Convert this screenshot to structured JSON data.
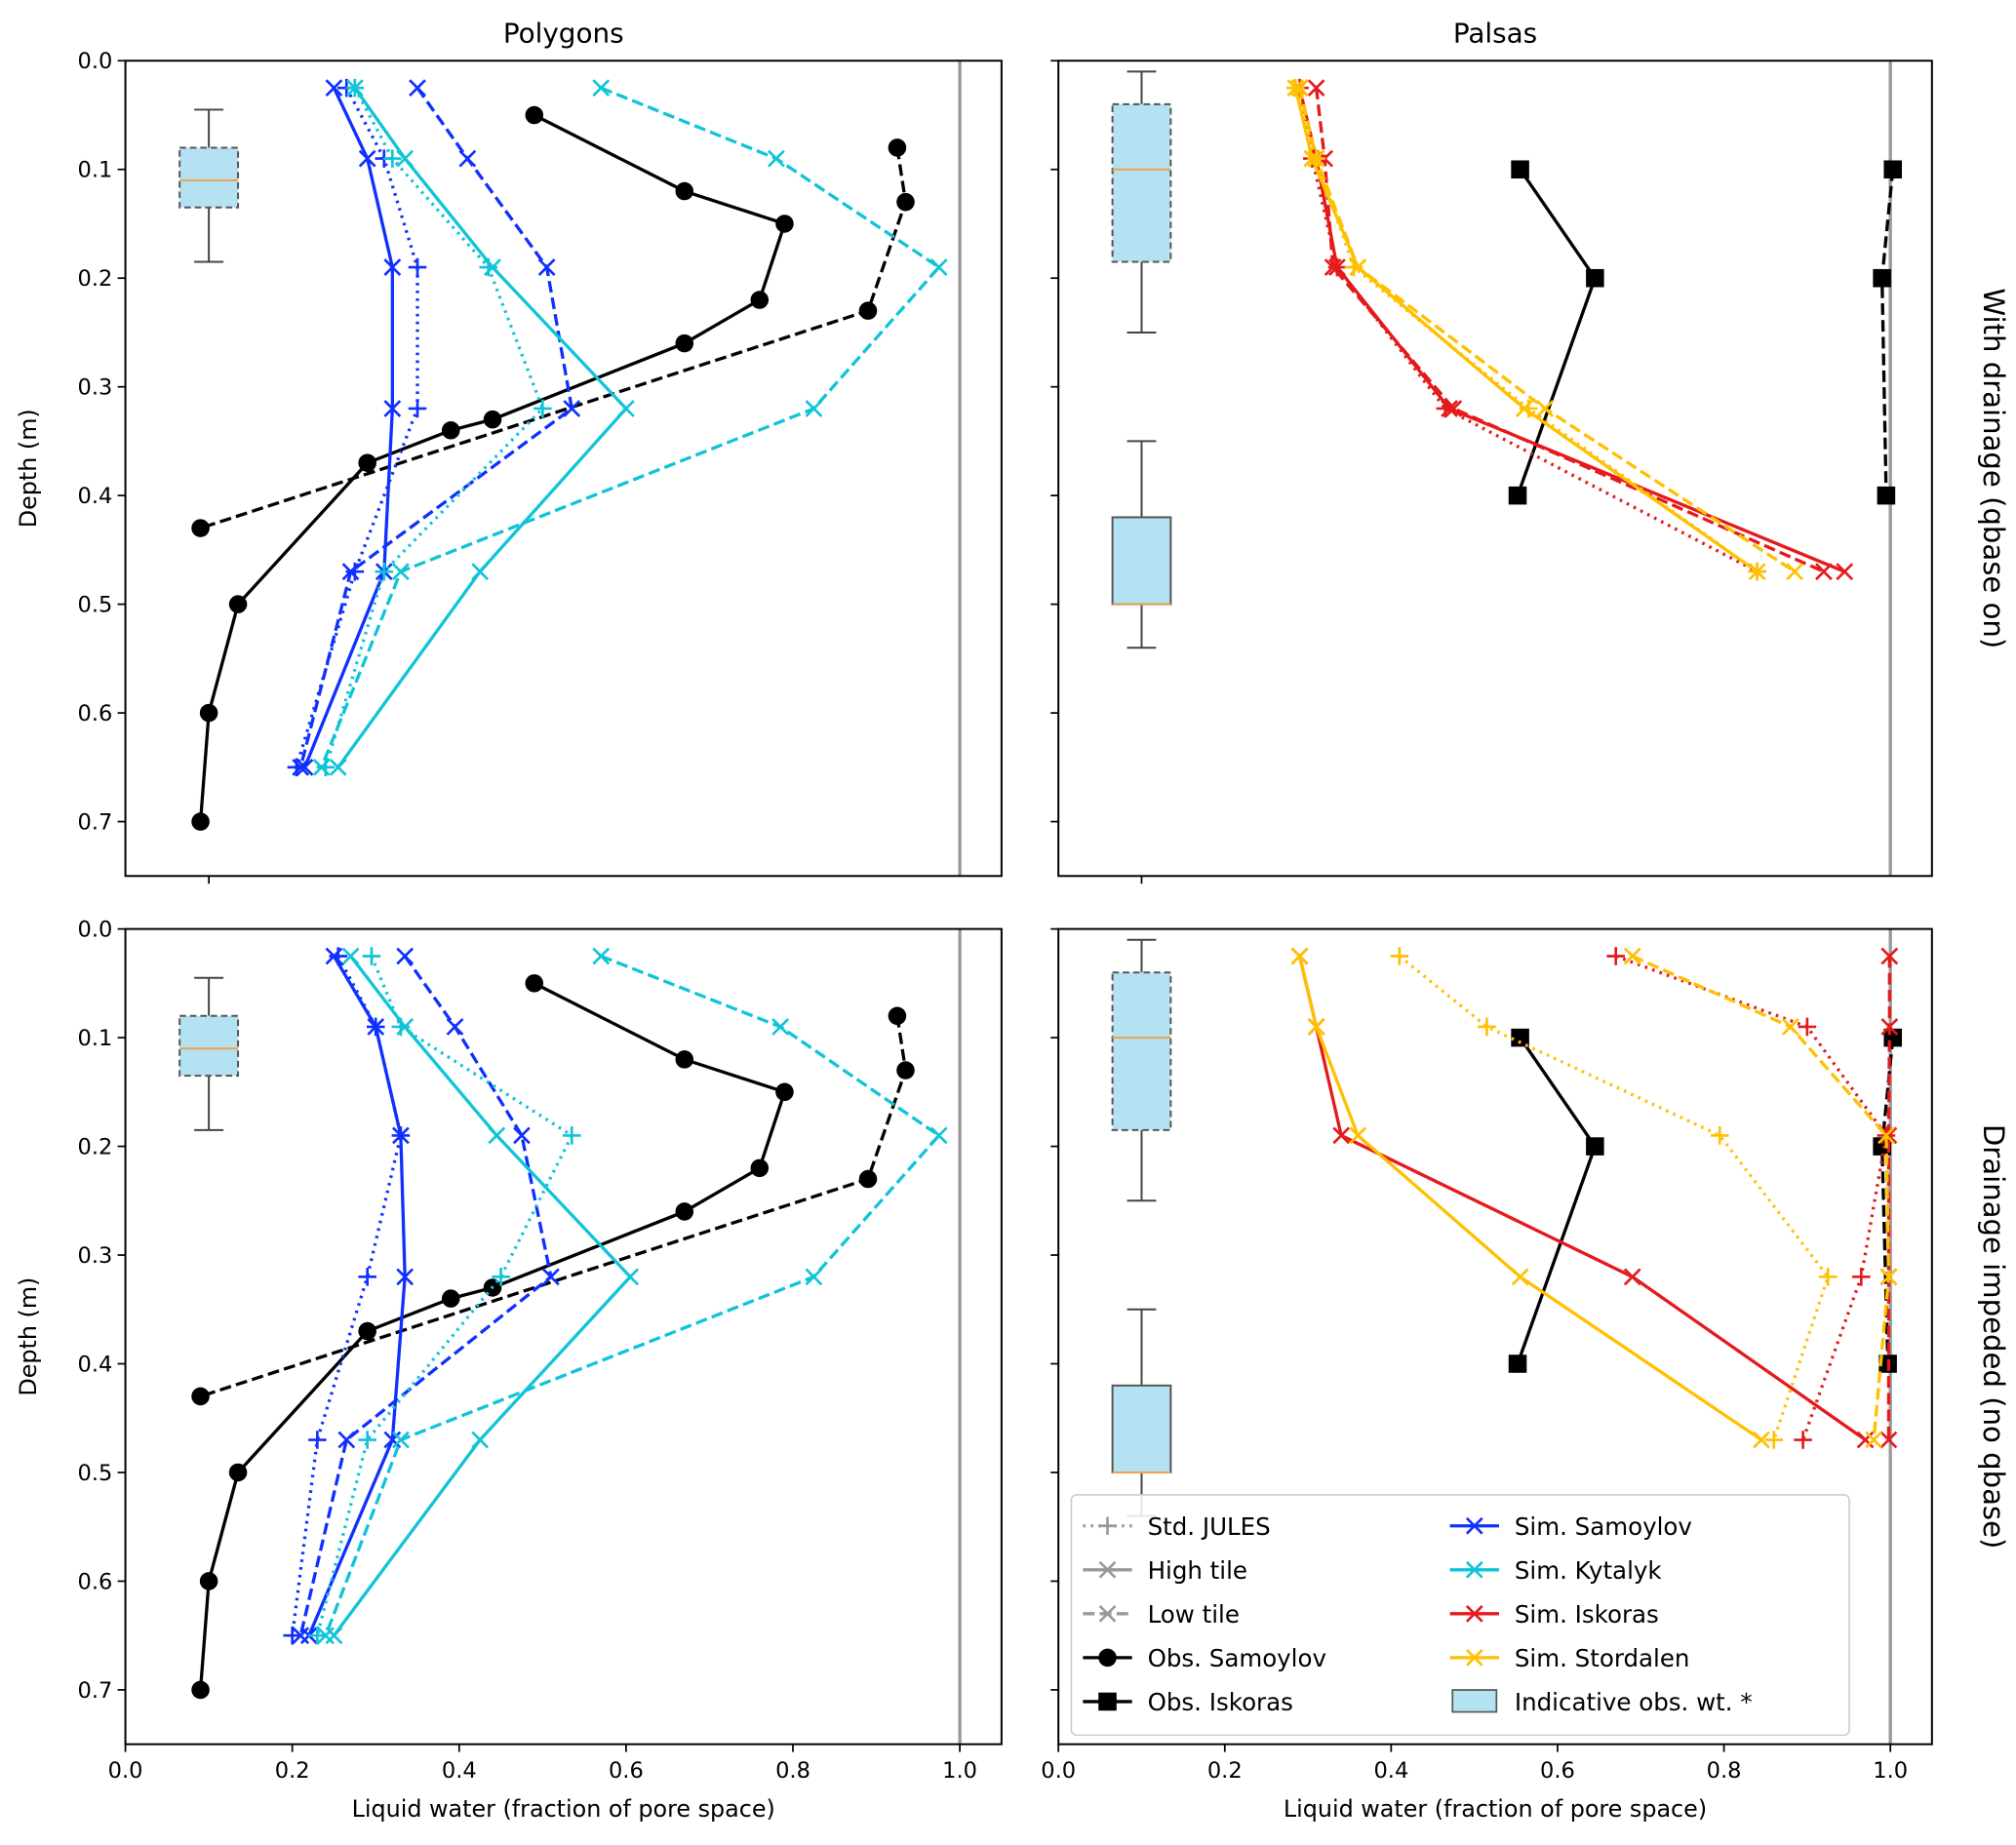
{
  "colors": {
    "Sim. Samoylov": "#1030ff",
    "Sim. Kytalyk": "#10c4d8",
    "Sim. Iskoras": "#e41a1c",
    "Sim. Stordalen": "#ffc000",
    "obs": "#000000",
    "box_fill": "#b5e2f2",
    "median": "#f0a050",
    "reference_line": "#999999"
  },
  "legend": {
    "placement": "lower-left of bottom-right panel",
    "items": [
      {
        "label": "Std. JULES",
        "style": "dotted",
        "marker": "plus",
        "color": "#999999"
      },
      {
        "label": "High tile",
        "style": "solid",
        "marker": "x",
        "color": "#999999"
      },
      {
        "label": "Low  tile",
        "style": "dashed",
        "marker": "x",
        "color": "#999999"
      },
      {
        "label": "Obs. Samoylov",
        "style": "solid",
        "marker": "circle",
        "color": "#000000"
      },
      {
        "label": "Obs. Iskoras",
        "style": "solid",
        "marker": "square",
        "color": "#000000"
      },
      {
        "label": "Sim. Samoylov",
        "style": "solid",
        "marker": "x",
        "color": "#1030ff"
      },
      {
        "label": "Sim. Kytalyk",
        "style": "solid",
        "marker": "x",
        "color": "#10c4d8"
      },
      {
        "label": "Sim. Iskoras",
        "style": "solid",
        "marker": "x",
        "color": "#e41a1c"
      },
      {
        "label": "Sim. Stordalen",
        "style": "solid",
        "marker": "x",
        "color": "#ffc000"
      },
      {
        "label": "Indicative obs. wt. *",
        "style": "box",
        "marker": "",
        "color": "#b5e2f2"
      }
    ]
  },
  "chart_data": [
    {
      "type": "line",
      "title": "Polygons",
      "row_label": "With drainage (qbase on)",
      "ylabel": "Depth (m)",
      "xlabel": "",
      "xlim": [
        0,
        1.05
      ],
      "ylim": [
        0.75,
        0
      ],
      "grid": false,
      "yticks": [
        "0.0",
        "0.1",
        "0.2",
        "0.3",
        "0.4",
        "0.5",
        "0.6",
        "0.7"
      ],
      "xticks": [],
      "reference_x": 1.0,
      "boxes": [
        {
          "x": 0.1,
          "whisker_low": 0.045,
          "q1": 0.08,
          "median": 0.11,
          "q3": 0.135,
          "whisker_high": 0.185,
          "dashed": true
        }
      ],
      "series": [
        {
          "site": "Obs. Samoylov",
          "variant": "",
          "style": "solid",
          "marker": "circle",
          "x": [
            0.49,
            0.67,
            0.79,
            0.76,
            0.67,
            0.44,
            0.39,
            0.29,
            0.135,
            0.1,
            0.09
          ],
          "y": [
            0.05,
            0.12,
            0.15,
            0.22,
            0.26,
            0.33,
            0.34,
            0.37,
            0.5,
            0.6,
            0.7
          ]
        },
        {
          "site": "Obs. Samoylov",
          "variant": "",
          "style": "dashed",
          "marker": "circle",
          "x": [
            0.925,
            0.935,
            0.89,
            0.09
          ],
          "y": [
            0.08,
            0.13,
            0.23,
            0.43
          ]
        },
        {
          "site": "Sim. Samoylov",
          "variant": "High tile",
          "style": "solid",
          "marker": "x",
          "x": [
            0.25,
            0.29,
            0.32,
            0.32,
            0.31,
            0.215
          ],
          "y": [
            0.025,
            0.09,
            0.19,
            0.32,
            0.47,
            0.65
          ]
        },
        {
          "site": "Sim. Samoylov",
          "variant": "Low  tile",
          "style": "dashed",
          "marker": "x",
          "x": [
            0.35,
            0.41,
            0.505,
            0.535,
            0.27,
            0.21
          ],
          "y": [
            0.025,
            0.09,
            0.19,
            0.32,
            0.47,
            0.65
          ]
        },
        {
          "site": "Sim. Samoylov",
          "variant": "Std. JULES",
          "style": "dotted",
          "marker": "plus",
          "x": [
            0.265,
            0.31,
            0.35,
            0.35,
            0.275,
            0.205
          ],
          "y": [
            0.025,
            0.09,
            0.19,
            0.32,
            0.47,
            0.65
          ]
        },
        {
          "site": "Sim. Kytalyk",
          "variant": "High tile",
          "style": "solid",
          "marker": "x",
          "x": [
            0.275,
            0.335,
            0.44,
            0.6,
            0.425,
            0.255
          ],
          "y": [
            0.025,
            0.09,
            0.19,
            0.32,
            0.47,
            0.65
          ]
        },
        {
          "site": "Sim. Kytalyk",
          "variant": "Low  tile",
          "style": "dashed",
          "marker": "x",
          "x": [
            0.57,
            0.78,
            0.975,
            0.825,
            0.33,
            0.235
          ],
          "y": [
            0.025,
            0.09,
            0.19,
            0.32,
            0.47,
            0.65
          ]
        },
        {
          "site": "Sim. Kytalyk",
          "variant": "Std. JULES",
          "style": "dotted",
          "marker": "plus",
          "x": [
            0.275,
            0.32,
            0.435,
            0.5,
            0.31,
            0.24
          ],
          "y": [
            0.025,
            0.09,
            0.19,
            0.32,
            0.47,
            0.65
          ]
        }
      ]
    },
    {
      "type": "line",
      "title": "Palsas",
      "row_label": "",
      "ylabel": "",
      "xlabel": "",
      "xlim": [
        0,
        1.05
      ],
      "ylim": [
        0.75,
        0
      ],
      "grid": false,
      "yticks": [],
      "xticks": [],
      "reference_x": 1.0,
      "boxes": [
        {
          "x": 0.1,
          "whisker_low": 0.01,
          "q1": 0.04,
          "median": 0.1,
          "q3": 0.185,
          "whisker_high": 0.25,
          "dashed": true
        },
        {
          "x": 0.1,
          "whisker_low": 0.35,
          "q1": 0.42,
          "median": 0.5,
          "q3": 0.5,
          "whisker_high": 0.54,
          "dashed": false
        }
      ],
      "series": [
        {
          "site": "Obs. Iskoras",
          "variant": "",
          "style": "solid",
          "marker": "square",
          "x": [
            0.555,
            0.645,
            0.552
          ],
          "y": [
            0.1,
            0.2,
            0.4
          ]
        },
        {
          "site": "Obs. Iskoras",
          "variant": "",
          "style": "dashed",
          "marker": "square",
          "x": [
            1.003,
            0.99,
            0.995
          ],
          "y": [
            0.1,
            0.2,
            0.4
          ]
        },
        {
          "site": "Sim. Iskoras",
          "variant": "High tile",
          "style": "solid",
          "marker": "x",
          "x": [
            0.29,
            0.31,
            0.335,
            0.47,
            0.945
          ],
          "y": [
            0.025,
            0.09,
            0.19,
            0.32,
            0.47
          ]
        },
        {
          "site": "Sim. Iskoras",
          "variant": "Low  tile",
          "style": "dashed",
          "marker": "x",
          "x": [
            0.31,
            0.32,
            0.33,
            0.475,
            0.92
          ],
          "y": [
            0.025,
            0.09,
            0.19,
            0.32,
            0.47
          ]
        },
        {
          "site": "Sim. Iskoras",
          "variant": "Std. JULES",
          "style": "dotted",
          "marker": "plus",
          "x": [
            0.29,
            0.305,
            0.335,
            0.465,
            0.84
          ],
          "y": [
            0.025,
            0.09,
            0.19,
            0.32,
            0.47
          ]
        },
        {
          "site": "Sim. Stordalen",
          "variant": "High tile",
          "style": "solid",
          "marker": "x",
          "x": [
            0.285,
            0.305,
            0.36,
            0.56,
            0.84
          ],
          "y": [
            0.025,
            0.09,
            0.19,
            0.32,
            0.47
          ]
        },
        {
          "site": "Sim. Stordalen",
          "variant": "Low  tile",
          "style": "dashed",
          "marker": "x",
          "x": [
            0.29,
            0.31,
            0.36,
            0.585,
            0.885
          ],
          "y": [
            0.025,
            0.09,
            0.19,
            0.32,
            0.47
          ]
        },
        {
          "site": "Sim. Stordalen",
          "variant": "Std. JULES",
          "style": "dotted",
          "marker": "plus",
          "x": [
            0.285,
            0.31,
            0.355,
            0.565,
            0.84
          ],
          "y": [
            0.025,
            0.09,
            0.19,
            0.32,
            0.47
          ]
        }
      ]
    },
    {
      "type": "line",
      "title": "",
      "row_label": "Drainage impeded (no qbase)",
      "ylabel": "Depth (m)",
      "xlabel": "Liquid water (fraction of pore space)",
      "xlim": [
        0,
        1.05
      ],
      "ylim": [
        0.75,
        0
      ],
      "grid": false,
      "yticks": [
        "0.0",
        "0.1",
        "0.2",
        "0.3",
        "0.4",
        "0.5",
        "0.6",
        "0.7"
      ],
      "xticks": [
        "0.0",
        "0.2",
        "0.4",
        "0.6",
        "0.8",
        "1.0"
      ],
      "reference_x": 1.0,
      "boxes": [
        {
          "x": 0.1,
          "whisker_low": 0.045,
          "q1": 0.08,
          "median": 0.11,
          "q3": 0.135,
          "whisker_high": 0.185,
          "dashed": true
        }
      ],
      "series": [
        {
          "site": "Obs. Samoylov",
          "variant": "",
          "style": "solid",
          "marker": "circle",
          "x": [
            0.49,
            0.67,
            0.79,
            0.76,
            0.67,
            0.44,
            0.39,
            0.29,
            0.135,
            0.1,
            0.09
          ],
          "y": [
            0.05,
            0.12,
            0.15,
            0.22,
            0.26,
            0.33,
            0.34,
            0.37,
            0.5,
            0.6,
            0.7
          ]
        },
        {
          "site": "Obs. Samoylov",
          "variant": "",
          "style": "dashed",
          "marker": "circle",
          "x": [
            0.925,
            0.935,
            0.89,
            0.09
          ],
          "y": [
            0.08,
            0.13,
            0.23,
            0.43
          ]
        },
        {
          "site": "Sim. Samoylov",
          "variant": "High tile",
          "style": "solid",
          "marker": "x",
          "x": [
            0.25,
            0.3,
            0.33,
            0.335,
            0.32,
            0.22
          ],
          "y": [
            0.025,
            0.09,
            0.19,
            0.32,
            0.47,
            0.65
          ]
        },
        {
          "site": "Sim. Samoylov",
          "variant": "Low  tile",
          "style": "dashed",
          "marker": "x",
          "x": [
            0.335,
            0.395,
            0.475,
            0.51,
            0.265,
            0.21
          ],
          "y": [
            0.025,
            0.09,
            0.19,
            0.32,
            0.47,
            0.65
          ]
        },
        {
          "site": "Sim. Samoylov",
          "variant": "Std. JULES",
          "style": "dotted",
          "marker": "plus",
          "x": [
            0.255,
            0.3,
            0.33,
            0.29,
            0.23,
            0.2
          ],
          "y": [
            0.025,
            0.09,
            0.19,
            0.32,
            0.47,
            0.65
          ]
        },
        {
          "site": "Sim. Kytalyk",
          "variant": "High tile",
          "style": "solid",
          "marker": "x",
          "x": [
            0.27,
            0.335,
            0.445,
            0.605,
            0.425,
            0.25
          ],
          "y": [
            0.025,
            0.09,
            0.19,
            0.32,
            0.47,
            0.65
          ]
        },
        {
          "site": "Sim. Kytalyk",
          "variant": "Low  tile",
          "style": "dashed",
          "marker": "x",
          "x": [
            0.57,
            0.785,
            0.975,
            0.825,
            0.33,
            0.24
          ],
          "y": [
            0.025,
            0.09,
            0.19,
            0.32,
            0.47,
            0.65
          ]
        },
        {
          "site": "Sim. Kytalyk",
          "variant": "Std. JULES",
          "style": "dotted",
          "marker": "plus",
          "x": [
            0.295,
            0.33,
            0.535,
            0.45,
            0.29,
            0.23
          ],
          "y": [
            0.025,
            0.09,
            0.19,
            0.32,
            0.47,
            0.65
          ]
        }
      ]
    },
    {
      "type": "line",
      "title": "",
      "row_label": "",
      "ylabel": "",
      "xlabel": "Liquid water (fraction of pore space)",
      "xlim": [
        0,
        1.05
      ],
      "ylim": [
        0.75,
        0
      ],
      "grid": false,
      "yticks": [],
      "xticks": [
        "0.0",
        "0.2",
        "0.4",
        "0.6",
        "0.8",
        "1.0"
      ],
      "reference_x": 1.0,
      "boxes": [
        {
          "x": 0.1,
          "whisker_low": 0.01,
          "q1": 0.04,
          "median": 0.1,
          "q3": 0.185,
          "whisker_high": 0.25,
          "dashed": true
        },
        {
          "x": 0.1,
          "whisker_low": 0.35,
          "q1": 0.42,
          "median": 0.5,
          "q3": 0.5,
          "whisker_high": 0.54,
          "dashed": false
        }
      ],
      "series": [
        {
          "site": "Obs. Iskoras",
          "variant": "",
          "style": "solid",
          "marker": "square",
          "x": [
            0.555,
            0.645,
            0.552
          ],
          "y": [
            0.1,
            0.2,
            0.4
          ]
        },
        {
          "site": "Obs. Iskoras",
          "variant": "",
          "style": "dashed",
          "marker": "square",
          "x": [
            1.003,
            0.99,
            0.997
          ],
          "y": [
            0.1,
            0.2,
            0.4
          ]
        },
        {
          "site": "Sim. Iskoras",
          "variant": "High tile",
          "style": "solid",
          "marker": "x",
          "x": [
            0.29,
            0.31,
            0.34,
            0.69,
            0.97
          ],
          "y": [
            0.025,
            0.09,
            0.19,
            0.32,
            0.47
          ]
        },
        {
          "site": "Sim. Iskoras",
          "variant": "Low  tile",
          "style": "dashed",
          "marker": "x",
          "x": [
            0.999,
            0.999,
            0.998,
            0.998,
            0.998
          ],
          "y": [
            0.025,
            0.09,
            0.19,
            0.32,
            0.47
          ]
        },
        {
          "site": "Sim. Iskoras",
          "variant": "Std. JULES",
          "style": "dotted",
          "marker": "plus",
          "x": [
            0.67,
            0.9,
            0.995,
            0.965,
            0.895
          ],
          "y": [
            0.025,
            0.09,
            0.19,
            0.32,
            0.47
          ]
        },
        {
          "site": "Sim. Stordalen",
          "variant": "High tile",
          "style": "solid",
          "marker": "x",
          "x": [
            0.29,
            0.31,
            0.36,
            0.555,
            0.845
          ],
          "y": [
            0.025,
            0.09,
            0.19,
            0.32,
            0.47
          ]
        },
        {
          "site": "Sim. Stordalen",
          "variant": "Low  tile",
          "style": "dashed",
          "marker": "x",
          "x": [
            0.69,
            0.88,
            0.995,
            0.998,
            0.98
          ],
          "y": [
            0.025,
            0.09,
            0.19,
            0.32,
            0.47
          ]
        },
        {
          "site": "Sim. Stordalen",
          "variant": "Std. JULES",
          "style": "dotted",
          "marker": "plus",
          "x": [
            0.41,
            0.515,
            0.795,
            0.925,
            0.86
          ],
          "y": [
            0.025,
            0.09,
            0.19,
            0.32,
            0.47
          ]
        }
      ]
    }
  ]
}
